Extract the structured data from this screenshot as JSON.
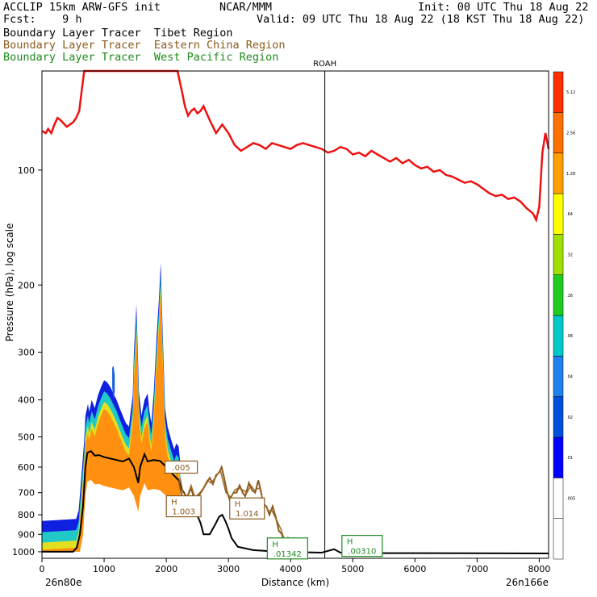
{
  "header": {
    "line1_left": "ACCLIP 15km ARW-GFS init",
    "line1_center": "NCAR/MMM",
    "line1_right": "Init: 00 UTC Thu 18 Aug 22",
    "line2_left": "Fcst:    9 h",
    "line2_right": "Valid: 09 UTC Thu 18 Aug 22 (18 KST Thu 18 Aug 22)",
    "legend": [
      {
        "label": "Boundary Layer Tracer  Tibet Region",
        "color": "#000000"
      },
      {
        "label": "Boundary Layer Tracer  Eastern China Region",
        "color": "#8b5a1e"
      },
      {
        "label": "Boundary Layer Tracer  West Pacific Region",
        "color": "#1e8a1e"
      }
    ]
  },
  "chart_data": {
    "type": "cross-section",
    "xlabel": "Distance (km)",
    "ylabel": "Pressure (hPa), log scale",
    "x_range": [
      0,
      8150
    ],
    "y_range_hPa": [
      1040,
      55
    ],
    "y_scale": "log",
    "x_ticks": [
      0,
      1000,
      2000,
      3000,
      4000,
      5000,
      6000,
      7000,
      8000
    ],
    "y_ticks": [
      100,
      200,
      300,
      400,
      500,
      600,
      700,
      800,
      900,
      1000
    ],
    "endpoint_left": "26n80e",
    "endpoint_right": "26n166e",
    "marker": {
      "label": "ROAH",
      "x_km": 4550
    },
    "tropopause_color": "#ee1111",
    "tropopause": [
      [
        0,
        79
      ],
      [
        60,
        80
      ],
      [
        100,
        78
      ],
      [
        150,
        80
      ],
      [
        200,
        76
      ],
      [
        250,
        73
      ],
      [
        300,
        74
      ],
      [
        400,
        77
      ],
      [
        450,
        76
      ],
      [
        500,
        75
      ],
      [
        550,
        73
      ],
      [
        600,
        70
      ],
      [
        650,
        60
      ],
      [
        680,
        55
      ],
      [
        2180,
        55
      ],
      [
        2250,
        62
      ],
      [
        2300,
        68
      ],
      [
        2350,
        72
      ],
      [
        2400,
        70
      ],
      [
        2450,
        69
      ],
      [
        2500,
        71
      ],
      [
        2550,
        70
      ],
      [
        2600,
        68
      ],
      [
        2700,
        74
      ],
      [
        2800,
        80
      ],
      [
        2900,
        76
      ],
      [
        3000,
        80
      ],
      [
        3100,
        86
      ],
      [
        3200,
        89
      ],
      [
        3300,
        87
      ],
      [
        3400,
        85
      ],
      [
        3500,
        86
      ],
      [
        3600,
        88
      ],
      [
        3700,
        85
      ],
      [
        3800,
        86
      ],
      [
        3900,
        87
      ],
      [
        4000,
        88
      ],
      [
        4100,
        86
      ],
      [
        4200,
        85
      ],
      [
        4300,
        86
      ],
      [
        4400,
        87
      ],
      [
        4500,
        88
      ],
      [
        4600,
        90
      ],
      [
        4700,
        89
      ],
      [
        4800,
        87
      ],
      [
        4900,
        88
      ],
      [
        5000,
        91
      ],
      [
        5100,
        90
      ],
      [
        5200,
        92
      ],
      [
        5300,
        89
      ],
      [
        5400,
        91
      ],
      [
        5500,
        93
      ],
      [
        5600,
        95
      ],
      [
        5700,
        93
      ],
      [
        5800,
        96
      ],
      [
        5900,
        94
      ],
      [
        6000,
        97
      ],
      [
        6100,
        99
      ],
      [
        6200,
        98
      ],
      [
        6300,
        101
      ],
      [
        6400,
        100
      ],
      [
        6500,
        103
      ],
      [
        6600,
        104
      ],
      [
        6700,
        106
      ],
      [
        6800,
        108
      ],
      [
        6900,
        107
      ],
      [
        7000,
        109
      ],
      [
        7100,
        112
      ],
      [
        7200,
        115
      ],
      [
        7300,
        117
      ],
      [
        7400,
        116
      ],
      [
        7500,
        119
      ],
      [
        7600,
        118
      ],
      [
        7700,
        121
      ],
      [
        7800,
        126
      ],
      [
        7900,
        130
      ],
      [
        7950,
        135
      ],
      [
        8000,
        125
      ],
      [
        8050,
        90
      ],
      [
        8100,
        80
      ],
      [
        8150,
        88
      ]
    ],
    "terrain": [
      [
        0,
        1000
      ],
      [
        500,
        1000
      ],
      [
        560,
        975
      ],
      [
        610,
        900
      ],
      [
        660,
        760
      ],
      [
        700,
        600
      ],
      [
        730,
        550
      ],
      [
        790,
        545
      ],
      [
        850,
        560
      ],
      [
        920,
        558
      ],
      [
        1000,
        565
      ],
      [
        1100,
        570
      ],
      [
        1200,
        575
      ],
      [
        1300,
        580
      ],
      [
        1400,
        570
      ],
      [
        1480,
        600
      ],
      [
        1550,
        660
      ],
      [
        1580,
        600
      ],
      [
        1650,
        555
      ],
      [
        1700,
        580
      ],
      [
        1800,
        575
      ],
      [
        1900,
        578
      ],
      [
        2000,
        600
      ],
      [
        2100,
        625
      ],
      [
        2200,
        650
      ],
      [
        2260,
        690
      ],
      [
        2330,
        720
      ],
      [
        2400,
        760
      ],
      [
        2480,
        790
      ],
      [
        2550,
        840
      ],
      [
        2600,
        900
      ],
      [
        2700,
        900
      ],
      [
        2800,
        840
      ],
      [
        2850,
        810
      ],
      [
        2900,
        800
      ],
      [
        2950,
        830
      ],
      [
        3000,
        870
      ],
      [
        3050,
        920
      ],
      [
        3150,
        970
      ],
      [
        3400,
        990
      ],
      [
        3800,
        1000
      ],
      [
        4500,
        1005
      ],
      [
        4700,
        985
      ],
      [
        4800,
        1005
      ],
      [
        5000,
        1008
      ],
      [
        6000,
        1008
      ],
      [
        8150,
        1010
      ]
    ],
    "tibet_tracer_top": [
      [
        0,
        830
      ],
      [
        550,
        820
      ],
      [
        590,
        780
      ],
      [
        640,
        620
      ],
      [
        680,
        510
      ],
      [
        700,
        440
      ],
      [
        740,
        410
      ],
      [
        760,
        430
      ],
      [
        800,
        400
      ],
      [
        850,
        420
      ],
      [
        900,
        390
      ],
      [
        950,
        370
      ],
      [
        1000,
        355
      ],
      [
        1050,
        360
      ],
      [
        1100,
        370
      ],
      [
        1150,
        385
      ],
      [
        1200,
        400
      ],
      [
        1250,
        420
      ],
      [
        1300,
        440
      ],
      [
        1350,
        460
      ],
      [
        1400,
        470
      ],
      [
        1420,
        440
      ],
      [
        1460,
        390
      ],
      [
        1480,
        300
      ],
      [
        1520,
        225
      ],
      [
        1560,
        380
      ],
      [
        1600,
        440
      ],
      [
        1650,
        400
      ],
      [
        1700,
        385
      ],
      [
        1730,
        430
      ],
      [
        1760,
        460
      ],
      [
        1800,
        380
      ],
      [
        1840,
        280
      ],
      [
        1880,
        220
      ],
      [
        1910,
        175
      ],
      [
        1940,
        260
      ],
      [
        1980,
        420
      ],
      [
        2020,
        470
      ],
      [
        2080,
        510
      ],
      [
        2130,
        540
      ],
      [
        2160,
        520
      ],
      [
        2200,
        530
      ],
      [
        2230,
        600
      ],
      [
        2200,
        650
      ],
      [
        2100,
        630
      ],
      [
        2000,
        600
      ],
      [
        1900,
        580
      ],
      [
        1800,
        575
      ],
      [
        1700,
        580
      ],
      [
        1650,
        555
      ],
      [
        1580,
        600
      ],
      [
        1550,
        660
      ],
      [
        1480,
        600
      ],
      [
        1400,
        570
      ],
      [
        1300,
        580
      ],
      [
        1200,
        575
      ],
      [
        1100,
        570
      ],
      [
        1000,
        565
      ],
      [
        920,
        558
      ],
      [
        850,
        560
      ],
      [
        790,
        545
      ],
      [
        730,
        550
      ],
      [
        700,
        600
      ],
      [
        660,
        760
      ],
      [
        610,
        900
      ],
      [
        560,
        975
      ],
      [
        500,
        1000
      ],
      [
        0,
        1000
      ]
    ],
    "tibet_blob": [
      [
        1130,
        330
      ],
      [
        1150,
        325
      ],
      [
        1170,
        345
      ],
      [
        1170,
        380
      ],
      [
        1150,
        400
      ],
      [
        1130,
        370
      ]
    ],
    "eastern_china_line": [
      [
        2200,
        650
      ],
      [
        2230,
        690
      ],
      [
        2270,
        730
      ],
      [
        2330,
        725
      ],
      [
        2400,
        680
      ],
      [
        2450,
        730
      ],
      [
        2520,
        715
      ],
      [
        2580,
        690
      ],
      [
        2650,
        660
      ],
      [
        2700,
        640
      ],
      [
        2750,
        665
      ],
      [
        2800,
        630
      ],
      [
        2850,
        620
      ],
      [
        2890,
        600
      ],
      [
        2930,
        640
      ],
      [
        2970,
        690
      ],
      [
        3020,
        730
      ],
      [
        3080,
        700
      ],
      [
        3130,
        700
      ],
      [
        3180,
        670
      ],
      [
        3230,
        700
      ],
      [
        3270,
        715
      ],
      [
        3330,
        660
      ],
      [
        3380,
        690
      ],
      [
        3430,
        700
      ],
      [
        3480,
        650
      ],
      [
        3520,
        690
      ],
      [
        3560,
        750
      ],
      [
        3610,
        760
      ],
      [
        3660,
        800
      ],
      [
        3710,
        760
      ],
      [
        3760,
        810
      ],
      [
        3810,
        880
      ],
      [
        3860,
        900
      ],
      [
        3910,
        960
      ],
      [
        3960,
        920
      ],
      [
        4010,
        940
      ],
      [
        4060,
        990
      ],
      [
        4110,
        1000
      ]
    ],
    "eastern_china_line2": [
      [
        2220,
        640
      ],
      [
        2270,
        700
      ],
      [
        2340,
        715
      ],
      [
        2400,
        670
      ],
      [
        2460,
        720
      ],
      [
        2540,
        700
      ],
      [
        2600,
        680
      ],
      [
        2660,
        650
      ],
      [
        2720,
        660
      ],
      [
        2790,
        640
      ],
      [
        2870,
        610
      ],
      [
        2910,
        650
      ],
      [
        2960,
        700
      ],
      [
        3040,
        720
      ],
      [
        3100,
        690
      ],
      [
        3160,
        680
      ],
      [
        3240,
        690
      ],
      [
        3300,
        700
      ],
      [
        3360,
        670
      ],
      [
        3420,
        690
      ],
      [
        3500,
        680
      ],
      [
        3560,
        740
      ],
      [
        3640,
        780
      ],
      [
        3700,
        780
      ],
      [
        3780,
        830
      ],
      [
        3840,
        870
      ],
      [
        3900,
        930
      ],
      [
        3980,
        950
      ],
      [
        4040,
        970
      ]
    ],
    "labels": [
      {
        "x": 2240,
        "p": 600,
        "text": ".005",
        "color": "#8b5a1e",
        "h": ""
      },
      {
        "x": 2280,
        "p": 760,
        "text": "1.003",
        "color": "#8b5a1e",
        "h": "H"
      },
      {
        "x": 3300,
        "p": 770,
        "text": "1.014",
        "color": "#8b5a1e",
        "h": "H"
      },
      {
        "x": 3950,
        "p": 980,
        "text": ".01342",
        "color": "#1e8a1e",
        "h": "H"
      },
      {
        "x": 5150,
        "p": 965,
        "text": ".00310",
        "color": "#1e8a1e",
        "h": "H"
      }
    ],
    "colorbar": {
      "colors": [
        "#ffffff",
        "#ffffff",
        "#0000ff",
        "#0050dd",
        "#2080f0",
        "#00c8c8",
        "#20cc20",
        "#a0e000",
        "#ffff00",
        "#ffa000",
        "#ff7000",
        "#ff3000"
      ],
      "labels": [
        "",
        ".005",
        ".01",
        ".02",
        ".04",
        ".08",
        ".16",
        ".32",
        ".64",
        "1.28",
        "2.56",
        "5.12"
      ]
    }
  }
}
